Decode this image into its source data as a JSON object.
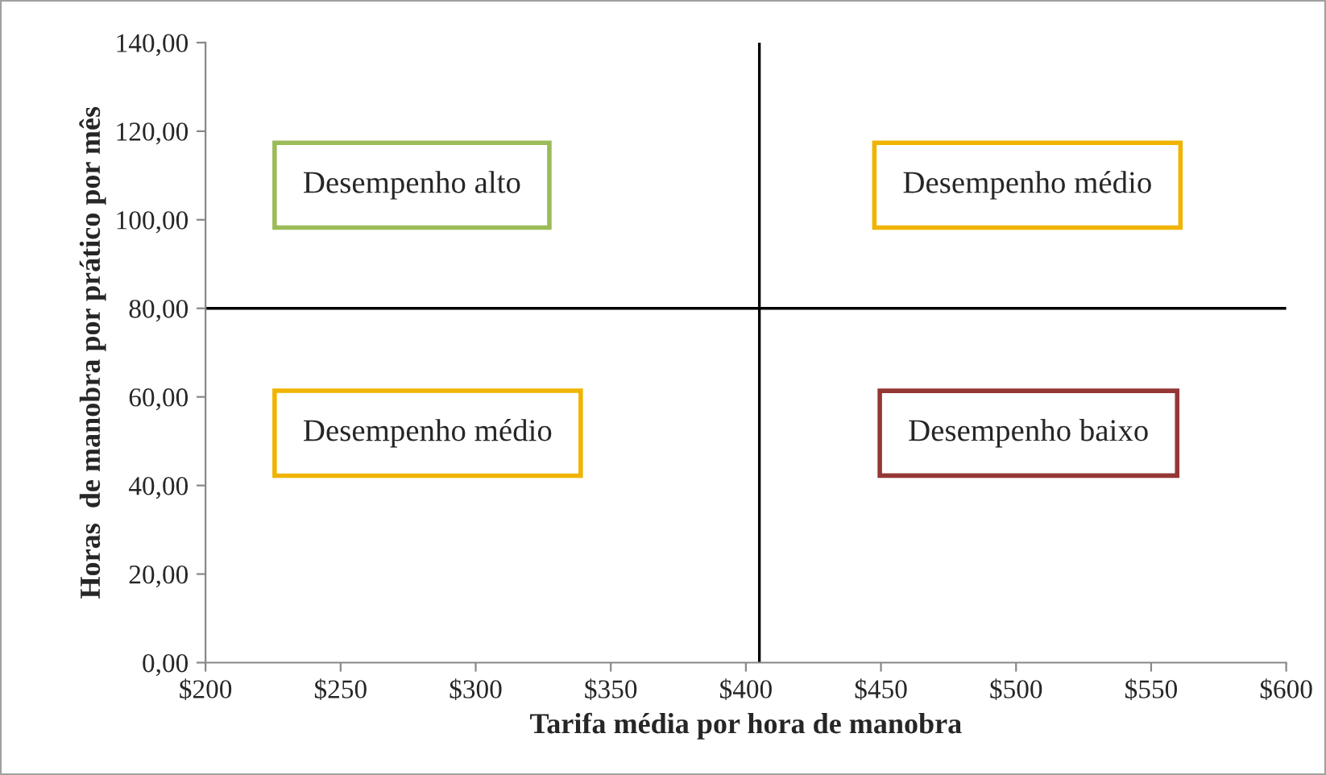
{
  "chart_data": {
    "type": "scatter",
    "xlabel": "Tarifa média por hora de manobra",
    "ylabel": "Horas  de manobra por prático por mês",
    "xlim": [
      200,
      600
    ],
    "xticks": [
      {
        "value": 200,
        "label": "$200"
      },
      {
        "value": 250,
        "label": "$250"
      },
      {
        "value": 300,
        "label": "$300"
      },
      {
        "value": 350,
        "label": "$350"
      },
      {
        "value": 400,
        "label": "$400"
      },
      {
        "value": 450,
        "label": "$450"
      },
      {
        "value": 500,
        "label": "$500"
      },
      {
        "value": 550,
        "label": "$550"
      },
      {
        "value": 600,
        "label": "$600"
      }
    ],
    "ylim": [
      0,
      140
    ],
    "yticks": [
      {
        "value": 0,
        "label": "0,00"
      },
      {
        "value": 20,
        "label": "20,00"
      },
      {
        "value": 40,
        "label": "40,00"
      },
      {
        "value": 60,
        "label": "60,00"
      },
      {
        "value": 80,
        "label": "80,00"
      },
      {
        "value": 100,
        "label": "100,00"
      },
      {
        "value": 120,
        "label": "120,00"
      },
      {
        "value": 140,
        "label": "140,00"
      }
    ],
    "ref_lines": [
      {
        "axis": "x",
        "value": 405,
        "color": "#000000"
      },
      {
        "axis": "y",
        "value": 80,
        "color": "#000000"
      }
    ],
    "annotations": [
      "Desempenho alto",
      "Desempenho médio",
      "Desempenho médio",
      "Desempenho baixo"
    ],
    "grid": false,
    "legend": false
  }
}
